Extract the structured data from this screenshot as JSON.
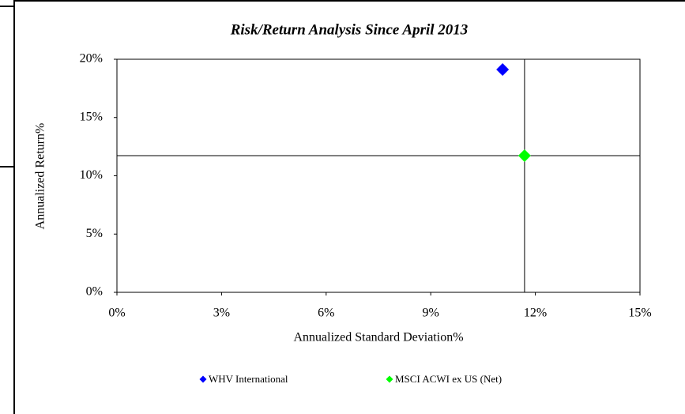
{
  "chart_data": {
    "type": "scatter",
    "title": "Risk/Return Analysis Since April 2013",
    "x_label": "Annualized Standard Deviation%",
    "y_label": "Annualized Return%",
    "xlim": [
      0,
      15
    ],
    "ylim": [
      0,
      20
    ],
    "xticks": [
      {
        "value": 0,
        "label": "0%"
      },
      {
        "value": 3,
        "label": "3%"
      },
      {
        "value": 6,
        "label": "6%"
      },
      {
        "value": 9,
        "label": "9%"
      },
      {
        "value": 12,
        "label": "12%"
      },
      {
        "value": 15,
        "label": "15%"
      }
    ],
    "yticks": [
      {
        "value": 0,
        "label": "0%"
      },
      {
        "value": 5,
        "label": "5%"
      },
      {
        "value": 10,
        "label": "10%"
      },
      {
        "value": 15,
        "label": "15%"
      },
      {
        "value": 20,
        "label": "20%"
      }
    ],
    "series": [
      {
        "name": "WHV International",
        "color": "#0000ff",
        "x": [
          11.06
        ],
        "values": [
          19.12
        ]
      },
      {
        "name": "MSCI ACWI ex US (Net)",
        "color": "#00ff00",
        "x": [
          11.69
        ],
        "values": [
          11.73
        ]
      }
    ]
  }
}
